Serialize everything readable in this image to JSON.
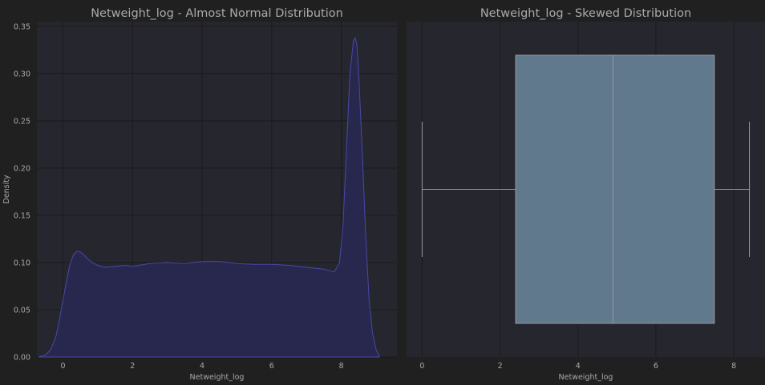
{
  "chart_data": [
    {
      "type": "area",
      "title": "Netweight_log - Almost Normal Distribution",
      "xlabel": "Netweight_log",
      "ylabel": "Density",
      "xlim": [
        -0.75,
        9.6
      ],
      "ylim": [
        0,
        0.355
      ],
      "xticks": [
        0,
        2,
        4,
        6,
        8
      ],
      "xtick_labels": [
        "0",
        "2",
        "4",
        "6",
        "8"
      ],
      "yticks": [
        0,
        0.05,
        0.1,
        0.15,
        0.2,
        0.25,
        0.3,
        0.35
      ],
      "ytick_labels": [
        "0.00",
        "0.05",
        "0.10",
        "0.15",
        "0.20",
        "0.25",
        "0.30",
        "0.35"
      ],
      "grid": true,
      "fill_color": "#28284f",
      "line_color": "#4848a8",
      "x": [
        -0.7,
        -0.5,
        -0.35,
        -0.2,
        -0.1,
        0,
        0.1,
        0.2,
        0.3,
        0.4,
        0.5,
        0.6,
        0.8,
        1.0,
        1.2,
        1.5,
        1.8,
        2.0,
        2.5,
        3.0,
        3.5,
        4.0,
        4.5,
        5.0,
        5.5,
        6.0,
        6.5,
        7.0,
        7.5,
        7.8,
        7.95,
        8.05,
        8.15,
        8.25,
        8.35,
        8.4,
        8.45,
        8.5,
        8.6,
        8.7,
        8.8,
        8.9,
        9.0,
        9.1
      ],
      "y": [
        0.0,
        0.002,
        0.008,
        0.022,
        0.04,
        0.06,
        0.08,
        0.098,
        0.108,
        0.112,
        0.111,
        0.108,
        0.101,
        0.097,
        0.095,
        0.096,
        0.097,
        0.096,
        0.099,
        0.1,
        0.099,
        0.101,
        0.101,
        0.099,
        0.098,
        0.098,
        0.097,
        0.095,
        0.093,
        0.09,
        0.1,
        0.14,
        0.22,
        0.3,
        0.335,
        0.338,
        0.33,
        0.3,
        0.22,
        0.13,
        0.06,
        0.025,
        0.008,
        0.0
      ]
    },
    {
      "type": "box",
      "title": "Netweight_log - Skewed Distribution",
      "xlabel": "Netweight_log",
      "xlim": [
        -0.4,
        8.8
      ],
      "xticks": [
        0,
        2,
        4,
        6,
        8
      ],
      "xtick_labels": [
        "0",
        "2",
        "4",
        "6",
        "8"
      ],
      "grid": true,
      "box_color": "#61798c",
      "whisker_low": 0.0,
      "q1": 2.4,
      "median": 4.9,
      "q3": 7.5,
      "whisker_high": 8.4
    }
  ]
}
